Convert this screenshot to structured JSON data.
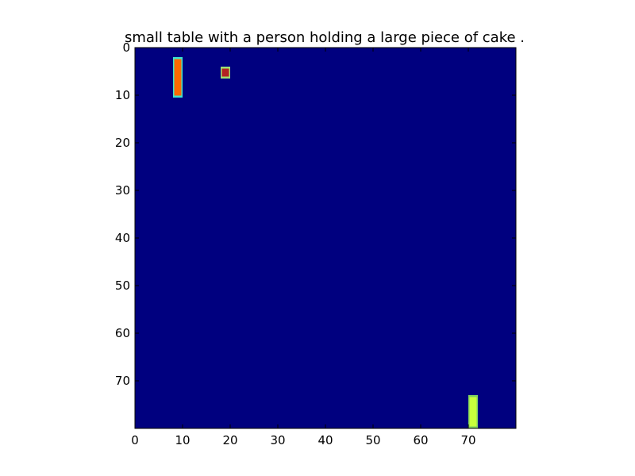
{
  "chart_data": {
    "type": "heatmap",
    "title": "small table with a person holding a large piece of cake .",
    "xlabel": "",
    "ylabel": "",
    "xlim": [
      0,
      80
    ],
    "ylim": [
      80,
      0
    ],
    "xticks": [
      0,
      10,
      20,
      30,
      40,
      50,
      60,
      70
    ],
    "yticks": [
      0,
      10,
      20,
      30,
      40,
      50,
      60,
      70
    ],
    "grid": false,
    "colormap": "jet",
    "background_color": "#00007f",
    "cells": [
      {
        "x0": 8,
        "x1": 10,
        "y0": 2,
        "y1": 10.5,
        "color": "#ff6a00",
        "edge_color": "#3de6d0"
      },
      {
        "x0": 18,
        "x1": 20,
        "y0": 4,
        "y1": 6.5,
        "color": "#b22222",
        "edge_color": "#a0e070"
      },
      {
        "x0": 70,
        "x1": 72,
        "y0": 73,
        "y1": 80,
        "color": "#c8ff3c",
        "edge_color": "#7fd060"
      }
    ]
  }
}
